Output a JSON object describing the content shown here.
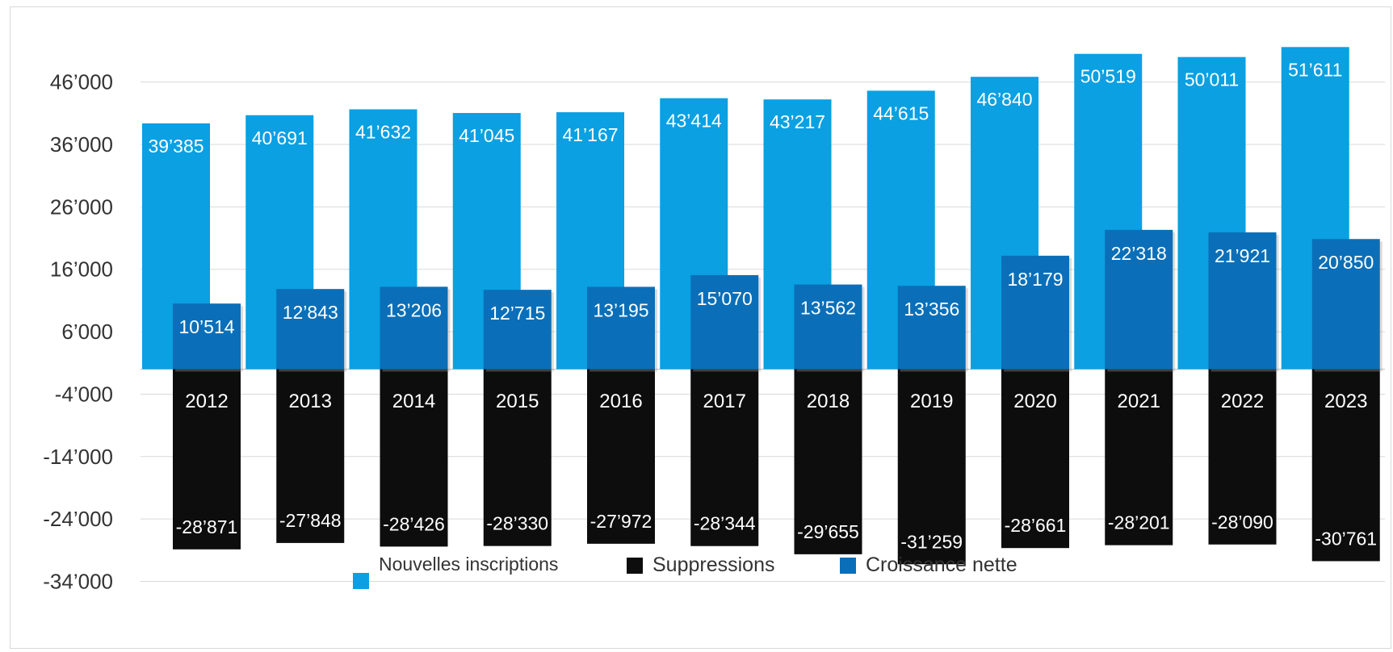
{
  "chart_data": {
    "type": "bar",
    "title": "",
    "xlabel": "",
    "ylabel": "",
    "ylim": [
      -34000,
      56000
    ],
    "yticks": [
      -34000,
      -24000,
      -14000,
      -4000,
      6000,
      16000,
      26000,
      36000,
      46000
    ],
    "ytick_labels": [
      "-34’000",
      "-24’000",
      "-14’000",
      "-4’000",
      "6’000",
      "16’000",
      "26’000",
      "36’000",
      "46’000"
    ],
    "categories": [
      "2012",
      "2013",
      "2014",
      "2015",
      "2016",
      "2017",
      "2018",
      "2019",
      "2020",
      "2021",
      "2022",
      "2023"
    ],
    "grid": true,
    "legend_position": "bottom",
    "series": [
      {
        "name": "Nouvelles inscriptions",
        "color": "#0aa0e2",
        "values": [
          39385,
          40691,
          41632,
          41045,
          41167,
          43414,
          43217,
          44615,
          46840,
          50519,
          50011,
          51611
        ],
        "labels": [
          "39’385",
          "40’691",
          "41’632",
          "41’045",
          "41’167",
          "43’414",
          "43’217",
          "44’615",
          "46’840",
          "50’519",
          "50’011",
          "51’611"
        ]
      },
      {
        "name": "Suppressions",
        "color": "#0d0d0d",
        "values": [
          -28871,
          -27848,
          -28426,
          -28330,
          -27972,
          -28344,
          -29655,
          -31259,
          -28661,
          -28201,
          -28090,
          -30761
        ],
        "labels": [
          "-28’871",
          "-27’848",
          "-28’426",
          "-28’330",
          "-27’972",
          "-28’344",
          "-29’655",
          "-31’259",
          "-28’661",
          "-28’201",
          "-28’090",
          "-30’761"
        ]
      },
      {
        "name": "Croissance nette",
        "color": "#0a6fb8",
        "values": [
          10514,
          12843,
          13206,
          12715,
          13195,
          15070,
          13562,
          13356,
          18179,
          22318,
          21921,
          20850
        ],
        "labels": [
          "10’514",
          "12’843",
          "13’206",
          "12’715",
          "13’195",
          "15’070",
          "13’562",
          "13’356",
          "18’179",
          "22’318",
          "21’921",
          "20’850"
        ]
      }
    ]
  }
}
